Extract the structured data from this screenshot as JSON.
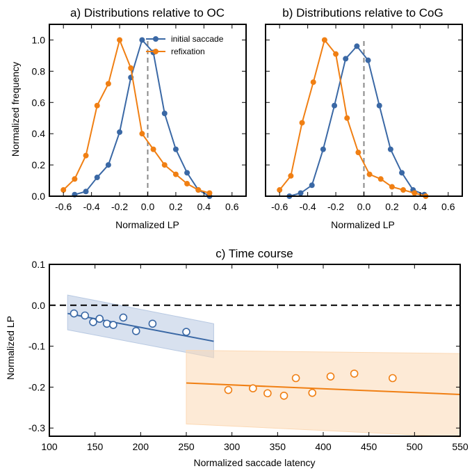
{
  "colors": {
    "blue": "#3a68a5",
    "orange": "#f07f13",
    "blue_band": "#b8c9e2",
    "orange_band": "#fcd9b5",
    "zero_line": "#888888"
  },
  "chart_data": [
    {
      "type": "line",
      "title": "a) Distributions relative to OC",
      "xlabel": "Normalized LP",
      "ylabel": "Normalized frequency",
      "xlim": [
        -0.7,
        0.7
      ],
      "ylim": [
        0,
        1.1
      ],
      "xticks": [
        "-0.6",
        "-0.4",
        "-0.2",
        "0.0",
        "0.2",
        "0.4",
        "0.6"
      ],
      "yticks": [
        "0.0",
        "0.2",
        "0.4",
        "0.6",
        "0.8",
        "1.0"
      ],
      "vline_x": 0,
      "legend": {
        "placement": "top-right",
        "entries": [
          "initial saccade",
          "refixation"
        ]
      },
      "series": [
        {
          "name": "initial saccade",
          "color": "blue",
          "x": [
            -0.52,
            -0.44,
            -0.36,
            -0.28,
            -0.2,
            -0.12,
            -0.04,
            0.04,
            0.12,
            0.2,
            0.28,
            0.36,
            0.44
          ],
          "y": [
            0.01,
            0.03,
            0.12,
            0.2,
            0.41,
            0.76,
            1.0,
            0.92,
            0.53,
            0.3,
            0.15,
            0.04,
            0.0
          ]
        },
        {
          "name": "refixation",
          "color": "orange",
          "x": [
            -0.6,
            -0.52,
            -0.44,
            -0.36,
            -0.28,
            -0.2,
            -0.12,
            -0.04,
            0.04,
            0.12,
            0.2,
            0.28,
            0.36,
            0.44
          ],
          "y": [
            0.04,
            0.11,
            0.26,
            0.58,
            0.72,
            1.0,
            0.82,
            0.4,
            0.3,
            0.2,
            0.14,
            0.08,
            0.04,
            0.02
          ]
        }
      ]
    },
    {
      "type": "line",
      "title": "b) Distributions relative to CoG",
      "xlabel": "Normalized LP",
      "ylabel": "",
      "xlim": [
        -0.7,
        0.7
      ],
      "ylim": [
        0,
        1.1
      ],
      "xticks": [
        "-0.6",
        "-0.4",
        "-0.2",
        "0.0",
        "0.2",
        "0.4",
        "0.6"
      ],
      "vline_x": 0,
      "series": [
        {
          "name": "initial saccade",
          "color": "blue",
          "x": [
            -0.53,
            -0.45,
            -0.37,
            -0.29,
            -0.21,
            -0.13,
            -0.05,
            0.03,
            0.11,
            0.19,
            0.27,
            0.35,
            0.43
          ],
          "y": [
            0.0,
            0.02,
            0.07,
            0.3,
            0.58,
            0.88,
            0.96,
            0.87,
            0.58,
            0.3,
            0.15,
            0.04,
            0.01
          ]
        },
        {
          "name": "refixation",
          "color": "orange",
          "x": [
            -0.6,
            -0.52,
            -0.44,
            -0.36,
            -0.28,
            -0.2,
            -0.12,
            -0.04,
            0.04,
            0.12,
            0.2,
            0.28,
            0.36,
            0.44
          ],
          "y": [
            0.04,
            0.13,
            0.47,
            0.73,
            1.0,
            0.91,
            0.5,
            0.28,
            0.14,
            0.11,
            0.06,
            0.04,
            0.02,
            0.0
          ]
        }
      ]
    },
    {
      "type": "scatter",
      "title": "c) Time course",
      "xlabel": "Normalized saccade latency",
      "ylabel": "Normalized LP",
      "xlim": [
        100,
        550
      ],
      "ylim": [
        -0.32,
        0.1
      ],
      "xticks": [
        "100",
        "150",
        "200",
        "250",
        "300",
        "350",
        "400",
        "450",
        "500",
        "550"
      ],
      "yticks": [
        "0.1",
        "0.0",
        "-0.1",
        "-0.2",
        "-0.3"
      ],
      "hline_y": 0,
      "series": [
        {
          "name": "initial saccade",
          "color": "blue",
          "x": [
            127,
            139,
            148,
            155,
            163,
            170,
            181,
            195,
            213,
            250
          ],
          "y": [
            -0.02,
            -0.025,
            -0.041,
            -0.033,
            -0.045,
            -0.048,
            -0.03,
            -0.063,
            -0.045,
            -0.065
          ],
          "fit": {
            "x": [
              120,
              280
            ],
            "y": [
              -0.02,
              -0.088
            ]
          },
          "band": {
            "x": [
              120,
              280
            ],
            "upper": [
              0.025,
              -0.045
            ],
            "lower": [
              -0.06,
              -0.128
            ]
          }
        },
        {
          "name": "refixation",
          "color": "orange",
          "x": [
            296,
            323,
            339,
            357,
            370,
            388,
            408,
            434,
            476
          ],
          "y": [
            -0.207,
            -0.203,
            -0.215,
            -0.221,
            -0.178,
            -0.214,
            -0.174,
            -0.167,
            -0.178
          ],
          "fit": {
            "x": [
              250,
              550
            ],
            "y": [
              -0.19,
              -0.218
            ]
          },
          "band": {
            "x": [
              250,
              550
            ],
            "upper": [
              -0.11,
              -0.118
            ],
            "lower": [
              -0.29,
              -0.322
            ]
          }
        }
      ]
    }
  ]
}
